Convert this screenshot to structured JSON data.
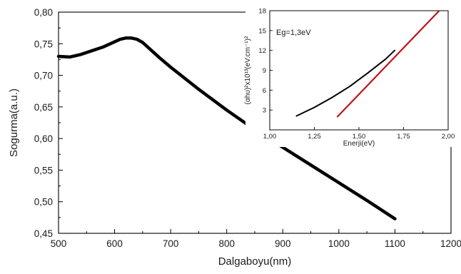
{
  "chart_data": [
    {
      "id": "main",
      "type": "line",
      "xlabel": "Dalgaboyu(nm)",
      "ylabel": "Sogurma(a.u.)",
      "xlim": [
        500,
        1200
      ],
      "ylim": [
        0.45,
        0.8
      ],
      "xticks": [
        500,
        600,
        700,
        800,
        900,
        1000,
        1100,
        1200
      ],
      "yticks": [
        0.45,
        0.5,
        0.55,
        0.6,
        0.65,
        0.7,
        0.75,
        0.8
      ],
      "xtick_labels": [
        "500",
        "600",
        "700",
        "800",
        "900",
        "1000",
        "1100",
        "1200"
      ],
      "ytick_labels": [
        "0,45",
        "0,50",
        "0,55",
        "0,60",
        "0,65",
        "0,70",
        "0,75",
        "0,80"
      ],
      "grid": false,
      "series": [
        {
          "color": "#000000",
          "x": [
            500,
            520,
            540,
            560,
            580,
            600,
            610,
            620,
            630,
            640,
            650,
            660,
            680,
            700,
            750,
            800,
            850,
            900,
            950,
            1000,
            1050,
            1100
          ],
          "y": [
            0.73,
            0.729,
            0.733,
            0.739,
            0.745,
            0.753,
            0.757,
            0.759,
            0.759,
            0.757,
            0.752,
            0.744,
            0.728,
            0.713,
            0.678,
            0.645,
            0.614,
            0.586,
            0.558,
            0.53,
            0.502,
            0.473
          ]
        }
      ]
    },
    {
      "id": "inset",
      "type": "line",
      "xlabel": "Enerji(eV)",
      "ylabel": "(αhυ)²x10¹³(eV.cm⁻¹)²",
      "xlim": [
        1.0,
        2.0
      ],
      "ylim": [
        0,
        18
      ],
      "xticks": [
        1.0,
        1.25,
        1.5,
        1.75,
        2.0
      ],
      "yticks": [
        3,
        6,
        9,
        12,
        15,
        18
      ],
      "xtick_labels": [
        "1,00",
        "1,25",
        "1,50",
        "1,75",
        "2,00"
      ],
      "ytick_labels": [
        "3",
        "6",
        "9",
        "12",
        "15",
        "18"
      ],
      "grid": false,
      "annotations": [
        {
          "text": "Eg=1,3eV"
        }
      ],
      "series": [
        {
          "color": "#000000",
          "x": [
            1.15,
            1.25,
            1.35,
            1.45,
            1.55,
            1.65,
            1.7
          ],
          "y": [
            2.1,
            3.4,
            4.9,
            6.6,
            8.6,
            10.7,
            12.0
          ]
        },
        {
          "color": "#c0121b",
          "x": [
            1.38,
            1.95
          ],
          "y": [
            2.0,
            18.0
          ]
        }
      ]
    }
  ]
}
